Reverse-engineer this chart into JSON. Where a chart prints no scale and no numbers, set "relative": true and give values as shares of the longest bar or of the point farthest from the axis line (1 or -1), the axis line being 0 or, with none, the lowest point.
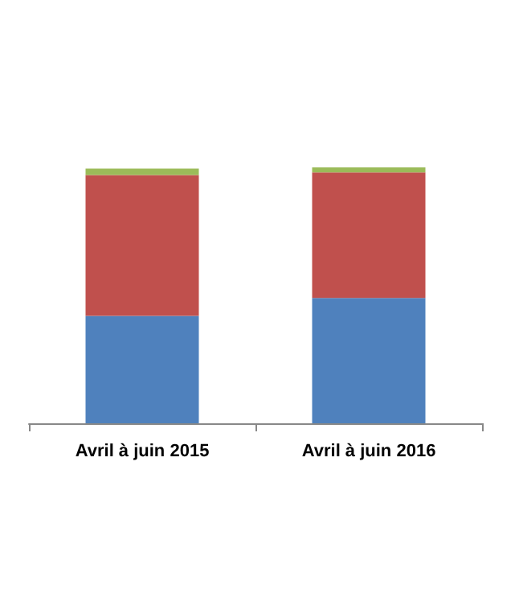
{
  "chart_data": {
    "type": "bar",
    "stacked": true,
    "relative": true,
    "categories": [
      "Avril à juin 2015",
      "Avril à juin 2016"
    ],
    "series": [
      {
        "color": "#4f81bd",
        "values": [
          0.42,
          0.49
        ]
      },
      {
        "color": "#c0504d",
        "values": [
          0.55,
          0.49
        ]
      },
      {
        "color": "#9bbb59",
        "values": [
          0.025,
          0.02
        ]
      }
    ]
  }
}
